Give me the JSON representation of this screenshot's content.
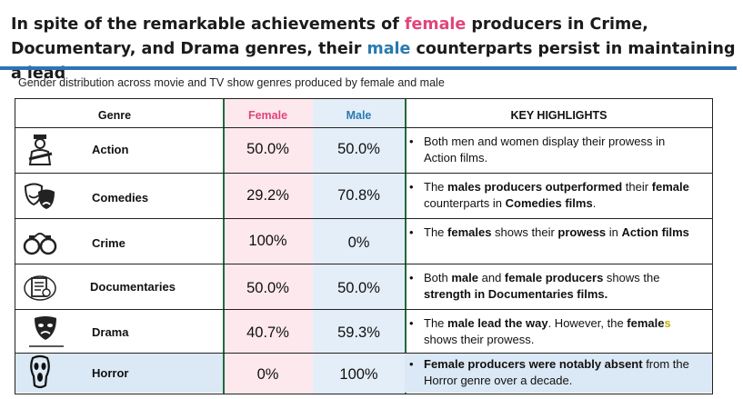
{
  "headline": {
    "part1": "In spite of the remarkable achievements of ",
    "female_word": "female",
    "part2": " producers in Crime, Documentary, and Drama genres, their ",
    "male_word": "male",
    "part3": " counterparts persist in maintaining a lead"
  },
  "subtitle": "Gender distribution across movie and TV show genres produced by female and male",
  "headers": {
    "genre": "Genre",
    "female": "Female",
    "male": "Male",
    "key": "KEY HIGHLIGHTS"
  },
  "colors": {
    "female": "#e0457b",
    "male": "#2a7ab0",
    "rule": "#2e74b5",
    "female_bg": "#fde8ee",
    "male_bg": "#e4eef8"
  },
  "chart_data": {
    "type": "table",
    "columns": [
      "Genre",
      "Female",
      "Male",
      "KEY HIGHLIGHTS"
    ],
    "rows": [
      {
        "genre": "Action",
        "icon": "soldier-icon",
        "female": "50.0%",
        "male": "50.0%"
      },
      {
        "genre": "Comedies",
        "icon": "comedy-masks-icon",
        "female": "29.2%",
        "male": "70.8%"
      },
      {
        "genre": "Crime",
        "icon": "handcuffs-icon",
        "female": "100%",
        "male": "0%"
      },
      {
        "genre": "Documentaries",
        "icon": "document-icon",
        "female": "50.0%",
        "male": "50.0%"
      },
      {
        "genre": "Drama",
        "icon": "drama-mask-icon",
        "female": "40.7%",
        "male": "59.3%"
      },
      {
        "genre": "Horror",
        "icon": "scream-mask-icon",
        "female": "0%",
        "male": "100%"
      }
    ]
  },
  "notes": {
    "action": {
      "a": "Both men and women display their prowess in Action films."
    },
    "comedies": {
      "a": "The ",
      "b": "males producers outperformed",
      "c": " their ",
      "d": "female",
      "e": " counterparts in ",
      "f": "Comedies films",
      "g": "."
    },
    "crime": {
      "a": "The ",
      "b": "females",
      "c": " shows their ",
      "d": "prowess",
      "e": " in ",
      "f": "Action films"
    },
    "documentaries": {
      "a": "Both ",
      "b": "male",
      "c": " and ",
      "d": "female producers",
      "e": " shows the ",
      "f": "strength in Documentaries films."
    },
    "drama": {
      "a": "The ",
      "b": "male lead the way",
      "c": ". However, the ",
      "d": "female",
      "e": "s",
      "f": " shows their prowess."
    },
    "horror": {
      "a": "Female producers were notably absent",
      "b": " from the Horror genre over a decade."
    }
  },
  "bullet": "•"
}
